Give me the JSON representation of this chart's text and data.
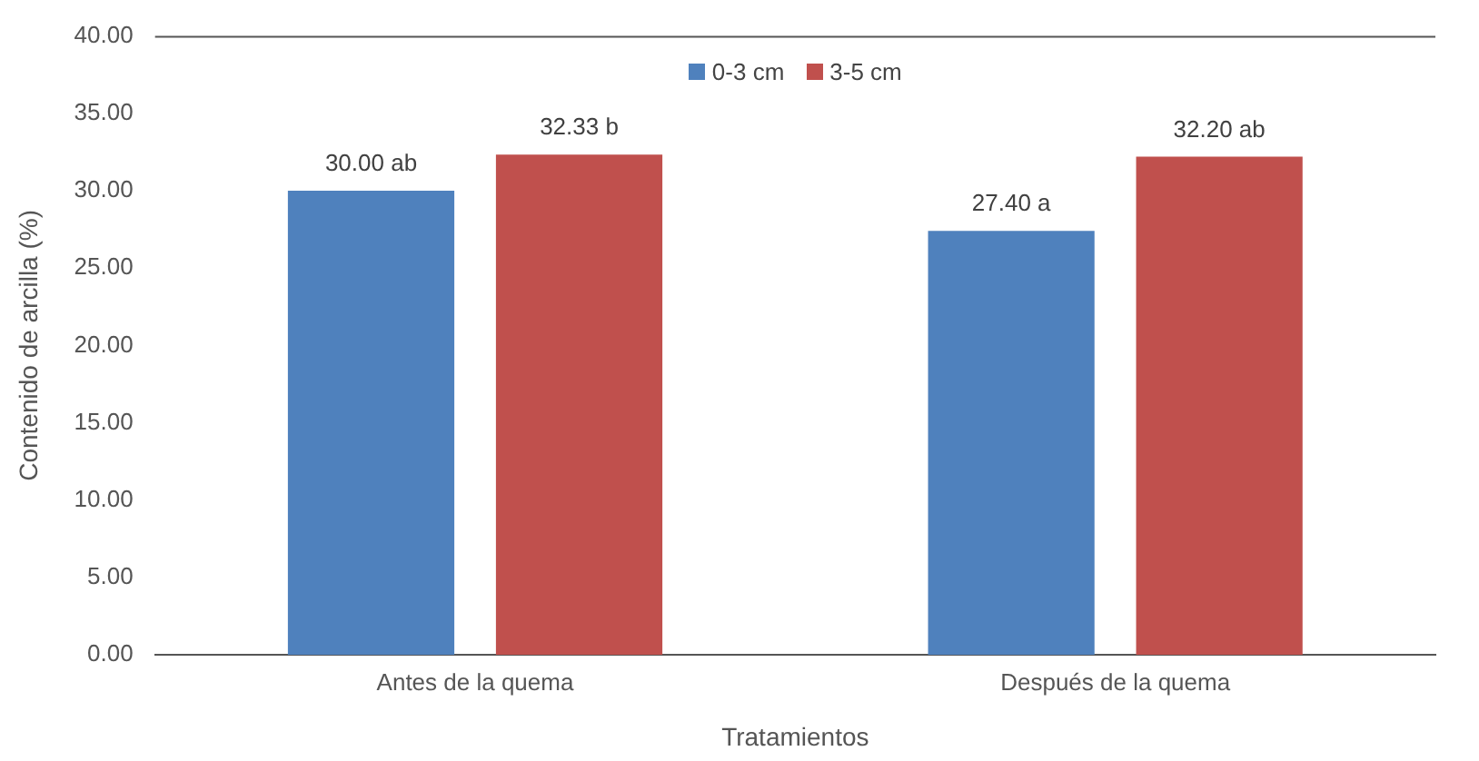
{
  "chart_data": {
    "type": "bar",
    "xlabel": "Tratamientos",
    "ylabel": "Contenido de arcilla (%)",
    "categories": [
      "Antes de la quema",
      "Después de la quema"
    ],
    "series": [
      {
        "name": "0-3 cm",
        "color": "#4f81bd",
        "values": [
          30.0,
          27.4
        ],
        "value_labels": [
          "30.00 ab",
          "27.40 a"
        ]
      },
      {
        "name": "3-5 cm",
        "color": "#c0504d",
        "values": [
          32.33,
          32.2
        ],
        "value_labels": [
          "32.33 b",
          "32.20 ab"
        ]
      }
    ],
    "ylim": [
      0,
      40
    ],
    "yticks": [
      {
        "value": 0,
        "label": "0.00"
      },
      {
        "value": 5,
        "label": "5.00"
      },
      {
        "value": 10,
        "label": "10.00"
      },
      {
        "value": 15,
        "label": "15.00"
      },
      {
        "value": 20,
        "label": "20.00"
      },
      {
        "value": 25,
        "label": "25.00"
      },
      {
        "value": 30,
        "label": "30.00"
      },
      {
        "value": 35,
        "label": "35.00"
      },
      {
        "value": 40,
        "label": "40.00"
      }
    ],
    "legend": "top"
  }
}
